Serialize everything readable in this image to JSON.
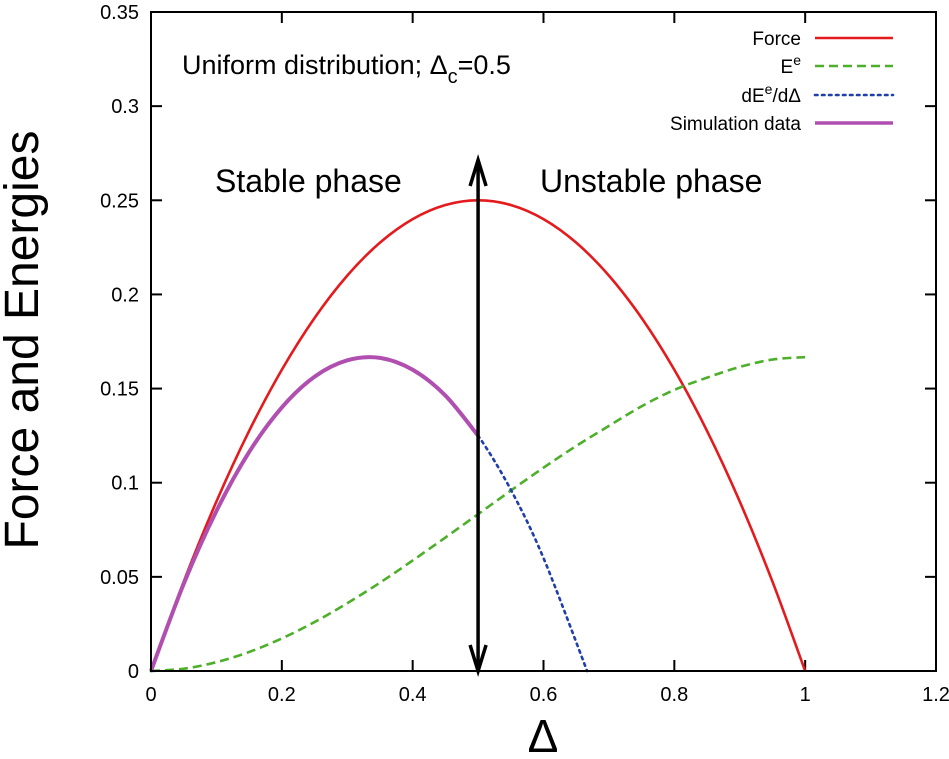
{
  "chart_data": {
    "type": "line",
    "title": "",
    "xlabel": "Δ",
    "ylabel": "Force and Energies",
    "xlim": [
      0,
      1.2
    ],
    "ylim": [
      0,
      0.35
    ],
    "xticks": [
      "0",
      "0.2",
      "0.4",
      "0.6",
      "0.8",
      "1",
      "1.2"
    ],
    "yticks": [
      "0",
      "0.05",
      "0.1",
      "0.15",
      "0.2",
      "0.25",
      "0.3",
      "0.35"
    ],
    "grid": false,
    "legend_position": "top-right",
    "series": [
      {
        "name": "Force",
        "color": "#e41a1c",
        "style": "solid",
        "x": [
          0,
          0.05,
          0.1,
          0.15,
          0.2,
          0.25,
          0.3,
          0.35,
          0.4,
          0.45,
          0.5,
          0.55,
          0.6,
          0.65,
          0.7,
          0.75,
          0.8,
          0.85,
          0.9,
          0.95,
          1.0
        ],
        "y": [
          0,
          0.0475,
          0.09,
          0.1275,
          0.16,
          0.1875,
          0.21,
          0.2275,
          0.24,
          0.2475,
          0.25,
          0.2475,
          0.24,
          0.2275,
          0.21,
          0.1875,
          0.16,
          0.1275,
          0.09,
          0.0475,
          0
        ]
      },
      {
        "name": "E",
        "sup": "e",
        "color": "#4daf2a",
        "style": "dashed",
        "x": [
          0,
          0.05,
          0.1,
          0.15,
          0.2,
          0.25,
          0.3,
          0.35,
          0.4,
          0.45,
          0.5,
          0.55,
          0.6,
          0.65,
          0.7,
          0.75,
          0.8,
          0.85,
          0.9,
          0.95,
          1.0
        ],
        "y": [
          0,
          0.0012,
          0.0047,
          0.0101,
          0.0173,
          0.026,
          0.036,
          0.0469,
          0.0587,
          0.0709,
          0.0833,
          0.0958,
          0.108,
          0.1195,
          0.1302,
          0.1406,
          0.1493,
          0.1558,
          0.1615,
          0.1654,
          0.1667
        ]
      },
      {
        "name": "dE",
        "sup": "e",
        "name_suffix": "/dΔ",
        "color": "#1f3fa8",
        "style": "dotted",
        "x": [
          0,
          0.05,
          0.1,
          0.15,
          0.2,
          0.25,
          0.3,
          0.35,
          0.4,
          0.45,
          0.5,
          0.55,
          0.6,
          0.6667
        ],
        "y": [
          0,
          0.0463,
          0.085,
          0.1163,
          0.14,
          0.1563,
          0.165,
          0.1663,
          0.16,
          0.1463,
          0.125,
          0.0963,
          0.06,
          0
        ]
      },
      {
        "name": "Simulation data",
        "color": "#b04fb0",
        "style": "solid",
        "x": [
          0,
          0.05,
          0.1,
          0.15,
          0.2,
          0.25,
          0.3,
          0.35,
          0.4,
          0.45,
          0.5
        ],
        "y": [
          0,
          0.0463,
          0.085,
          0.1163,
          0.14,
          0.1563,
          0.165,
          0.1663,
          0.16,
          0.1463,
          0.125
        ]
      }
    ],
    "annotations": {
      "distribution_prefix": "Uniform distribution; Δ",
      "distribution_sub": "c",
      "distribution_suffix": "=0.5",
      "stable": "Stable phase",
      "unstable": "Unstable phase",
      "arrow_x": 0.5
    }
  }
}
